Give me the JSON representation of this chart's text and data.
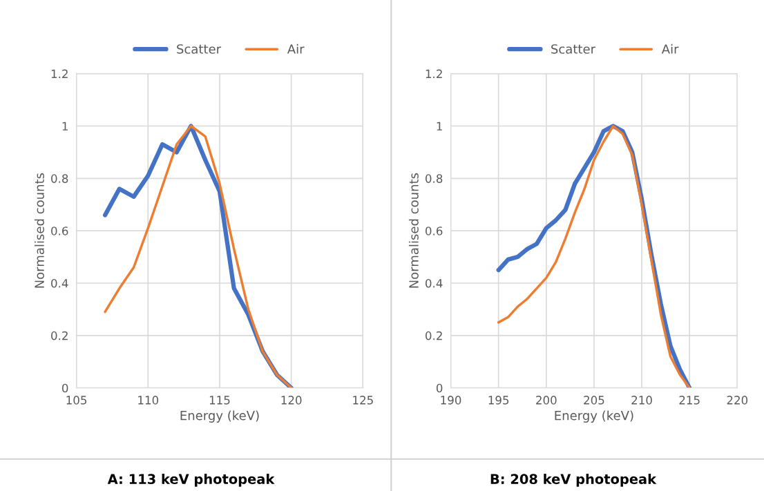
{
  "chart_data": [
    {
      "type": "line",
      "xlabel": "Energy (keV)",
      "ylabel": "Normalised counts",
      "annotations": [
        "A: 113 keV photopeak"
      ],
      "x": [
        107,
        108,
        109,
        110,
        111,
        112,
        113,
        114,
        115,
        116,
        117,
        118,
        119,
        120
      ],
      "series": [
        {
          "name": "Scatter",
          "color": "#4472c4",
          "values": [
            0.66,
            0.76,
            0.73,
            0.81,
            0.93,
            0.9,
            1.0,
            0.87,
            0.75,
            0.38,
            0.28,
            0.14,
            0.05,
            0
          ]
        },
        {
          "name": "Air",
          "color": "#ed7d31",
          "values": [
            0.29,
            0.38,
            0.46,
            0.61,
            0.77,
            0.93,
            1.0,
            0.96,
            0.78,
            0.53,
            0.3,
            0.14,
            0.05,
            0
          ]
        }
      ],
      "xlim": [
        105,
        125
      ],
      "xticks": [
        105,
        110,
        115,
        120,
        125
      ],
      "ylim": [
        0,
        1.2
      ],
      "yticks": [
        0,
        0.2,
        0.4,
        0.6,
        0.8,
        1,
        1.2
      ],
      "grid": true,
      "legend": "top",
      "marker": "none",
      "line_style": "solid"
    },
    {
      "type": "line",
      "xlabel": "Energy (keV)",
      "ylabel": "Normalised counts",
      "annotations": [
        "B: 208 keV photopeak"
      ],
      "x": [
        195,
        196,
        197,
        198,
        199,
        200,
        201,
        202,
        203,
        204,
        205,
        206,
        207,
        208,
        209,
        210,
        211,
        212,
        213,
        214,
        215
      ],
      "series": [
        {
          "name": "Scatter",
          "color": "#4472c4",
          "values": [
            0.45,
            0.49,
            0.5,
            0.53,
            0.55,
            0.61,
            0.64,
            0.68,
            0.78,
            0.84,
            0.9,
            0.98,
            1.0,
            0.98,
            0.9,
            0.72,
            0.51,
            0.32,
            0.16,
            0.07,
            0
          ]
        },
        {
          "name": "Air",
          "color": "#ed7d31",
          "values": [
            0.25,
            0.27,
            0.31,
            0.34,
            0.38,
            0.42,
            0.48,
            0.57,
            0.67,
            0.76,
            0.87,
            0.94,
            1.0,
            0.97,
            0.89,
            0.7,
            0.49,
            0.28,
            0.12,
            0.05,
            0
          ]
        }
      ],
      "xlim": [
        190,
        220
      ],
      "xticks": [
        190,
        195,
        200,
        205,
        210,
        215,
        220
      ],
      "ylim": [
        0,
        1.2
      ],
      "yticks": [
        0,
        0.2,
        0.4,
        0.6,
        0.8,
        1,
        1.2
      ],
      "grid": true,
      "legend": "top",
      "marker": "none",
      "line_style": "solid"
    }
  ]
}
